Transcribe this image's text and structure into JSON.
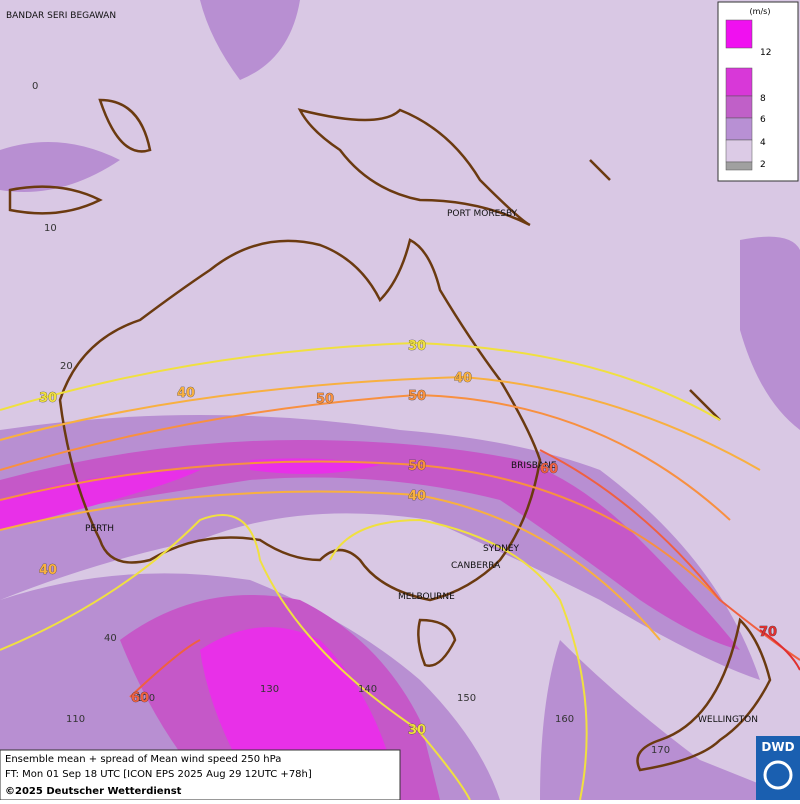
{
  "map": {
    "places": [
      "BANDAR SERI BEGAWAN",
      "PORT MORESBY",
      "BRISBANE",
      "PERTH",
      "SYDNEY",
      "CANBERRA",
      "MELBOURNE",
      "WELLINGTON"
    ],
    "latitude_labels": [
      0,
      10,
      20,
      40
    ],
    "longitude_labels": [
      110,
      120,
      130,
      140,
      150,
      160,
      170
    ],
    "contour_labels": [
      {
        "value": 30,
        "color": "#f0e040"
      },
      {
        "value": 40,
        "color": "#f8b040"
      },
      {
        "value": 30,
        "color": "#f0e040"
      },
      {
        "value": 40,
        "color": "#f8b040"
      },
      {
        "value": 50,
        "color": "#f89040"
      },
      {
        "value": 50,
        "color": "#f89040"
      },
      {
        "value": 50,
        "color": "#f89040"
      },
      {
        "value": 40,
        "color": "#f8b040"
      },
      {
        "value": 40,
        "color": "#f8b040"
      },
      {
        "value": 30,
        "color": "#f0e040"
      },
      {
        "value": 60,
        "color": "#f06040"
      },
      {
        "value": 70,
        "color": "#e03030"
      },
      {
        "value": 60,
        "color": "#f06040"
      }
    ]
  },
  "legend": {
    "unit": "(m/s)",
    "levels": [
      12,
      8,
      6,
      4,
      2
    ],
    "colors": [
      "#f010f0",
      "#d838d8",
      "#c060c8",
      "#b890d4",
      "#dccbe6",
      "#a0a0a0"
    ]
  },
  "footer": {
    "lines": [
      "Ensemble mean + spread of Mean wind speed 250 hPa",
      "FT: Mon 01 Sep 18 UTC [ICON EPS 2025 Aug 29 12UTC +78h]",
      "©2025 Deutscher Wetterdienst"
    ],
    "logo": "DWD"
  }
}
